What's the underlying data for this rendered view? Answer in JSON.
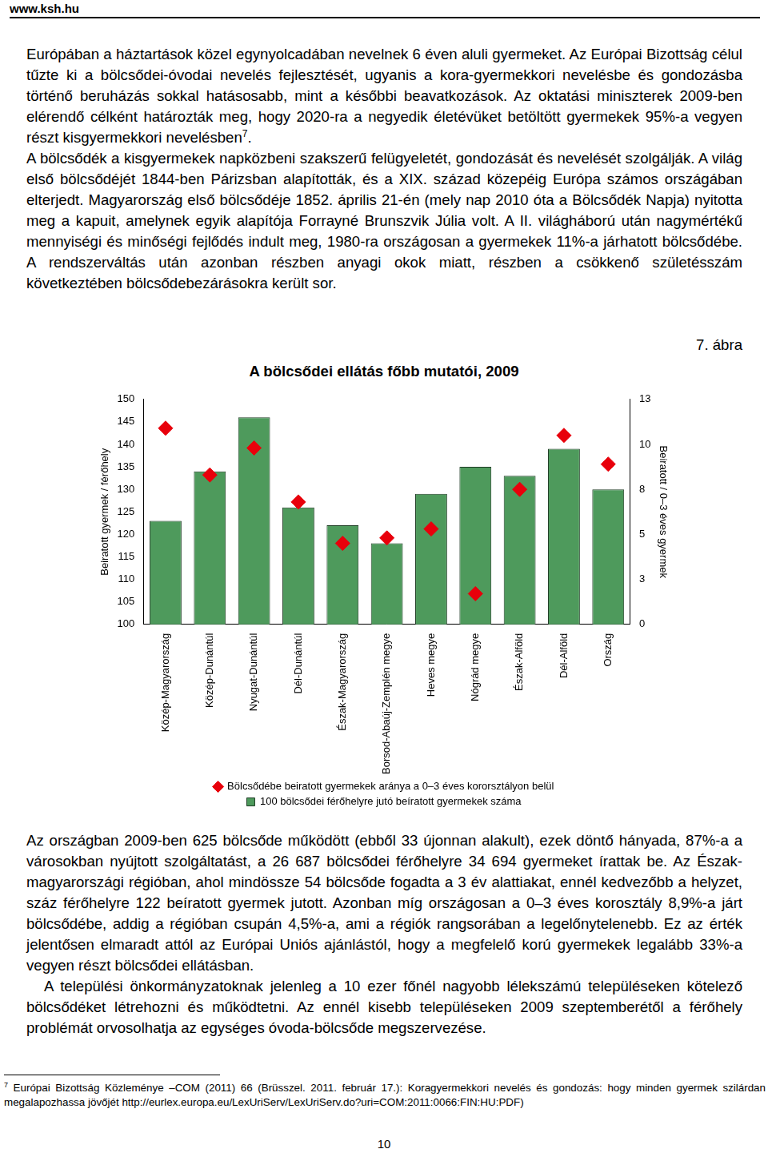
{
  "header": "www.ksh.hu",
  "paragraphs_top": [
    {
      "text": "Európában a háztartások közel egynyolcadában nevelnek 6 éven aluli gyermeket. Az Európai Bizottság célul tűzte ki a bölcsődei-óvodai nevelés fejlesztését, ugyanis a kora-gyermekkori nevelésbe és gondozásba történő beruházás sokkal hatásosabb, mint a későbbi beavatkozások. Az oktatási miniszterek 2009-ben elérendő célként határozták meg, hogy 2020-ra a negyedik életévüket betöltött gyermekek 95%-a vegyen részt kisgyermekkori nevelésben",
      "sup": "7",
      "after": "."
    },
    {
      "text": "A bölcsődék a kisgyermekek napközbeni szakszerű felügyeletét, gondozását és nevelését szolgálják. A világ első bölcsődéjét 1844-ben Párizsban alapították, és a XIX. század közepéig Európa számos országában elterjedt. Magyarország első bölcsődéje 1852. április 21-én (mely nap 2010 óta a Bölcsődék Napja) nyitotta meg a kapuit, amelynek egyik alapítója Forrayné Brunszvik Júlia volt. A II. világháború után nagymértékű mennyiségi és minőségi fejlődés indult meg, 1980-ra országosan a gyermekek 11%-a járhatott bölcsődébe. A rendszerváltás után azonban részben anyagi okok miatt, részben a csökkenő születésszám következtében bölcsődebezárásokra került sor."
    }
  ],
  "figure_label": "7. ábra",
  "chart_data": {
    "type": "bar",
    "title": "A bölcsődei ellátás főbb mutatói, 2009",
    "categories": [
      "Közép-Magyarország",
      "Közép-Dunántúl",
      "Nyugat-Dunántúl",
      "Dél-Dunántúl",
      "Észak-Magyarország",
      "Borsod-Abaúj-Zemplén megye",
      "Heves megye",
      "Nógrád megye",
      "Észak-Alföld",
      "Dél-Alföld",
      "Ország"
    ],
    "series": [
      {
        "name": "100 bölcsődei férőhelyre jutó beíratott gyermekek száma",
        "type": "bar",
        "color": "#4e9a5c",
        "values": [
          123,
          134,
          146,
          126,
          122,
          118,
          129,
          135,
          133,
          139,
          130
        ]
      },
      {
        "name": "Bölcsődébe beiratott gyermekek aránya a 0–3 éves kororsztályon belül",
        "type": "line",
        "axis": "y2",
        "color": "#e8000b",
        "marker": "diamond",
        "line_style": "none",
        "values": [
          10.9,
          8.3,
          9.8,
          6.8,
          4.5,
          4.8,
          5.3,
          1.7,
          7.5,
          10.5,
          8.9
        ]
      }
    ],
    "y_label": "Beiratott gyermek / férőhely",
    "y2_label": "Beiratott / 0–3 éves gyermek",
    "ylim": [
      100,
      150
    ],
    "yticks": [
      100,
      105,
      110,
      115,
      120,
      125,
      130,
      135,
      140,
      145,
      150
    ],
    "y2lim": [
      0,
      12.5
    ],
    "y2ticks": [
      0,
      {
        "value": 2.5,
        "label": "3"
      },
      5,
      {
        "value": 7.5,
        "label": "8"
      },
      10,
      {
        "value": 12.5,
        "label": "13"
      }
    ],
    "grid": false,
    "legend": "bottom"
  },
  "paragraphs_bottom": [
    {
      "text": "Az országban 2009-ben 625 bölcsőde működött (ebből 33 újonnan alakult), ezek döntő hányada, 87%-a a városokban nyújtott szolgáltatást, a 26 687 bölcsődei férőhelyre 34 694 gyermeket írattak be. Az Észak-magyarországi régióban, ahol mindössze 54 bölcsőde fogadta a 3 év alattiakat, ennél kedvezőbb a helyzet, száz férőhelyre 122 beíratott gyermek jutott. Azonban míg országosan a 0–3 éves korosztály 8,9%-a járt bölcsődébe, addig a régióban csupán 4,5%-a, ami a régiók rangsorában a legelőnytelenebb. Ez az érték jelentősen elmaradt attól az Európai Uniós ajánlástól, hogy a megfelelő korú gyermekek legalább 33%-a vegyen részt bölcsődei ellátásban."
    },
    {
      "text": "A települési önkormányzatoknak jelenleg a 10 ezer főnél nagyobb lélekszámú településeken kötelező bölcsődéket létrehozni és működtetni. Az ennél kisebb településeken 2009 szeptemberétől a férőhely problémát orvosolhatja az egységes óvoda-bölcsőde megszervezése."
    }
  ],
  "footnote": {
    "sup": "7",
    "text": "Európai Bizottság Közleménye –COM (2011) 66 (Brüsszel. 2011. február 17.): Koragyermekkori nevelés és gondozás: hogy minden gyermek szilárdan megalapozhassa jövőjét http://eurlex.europa.eu/LexUriServ/LexUriServ.do?uri=COM:2011:0066:FIN:HU:PDF)"
  },
  "page_number": "10"
}
